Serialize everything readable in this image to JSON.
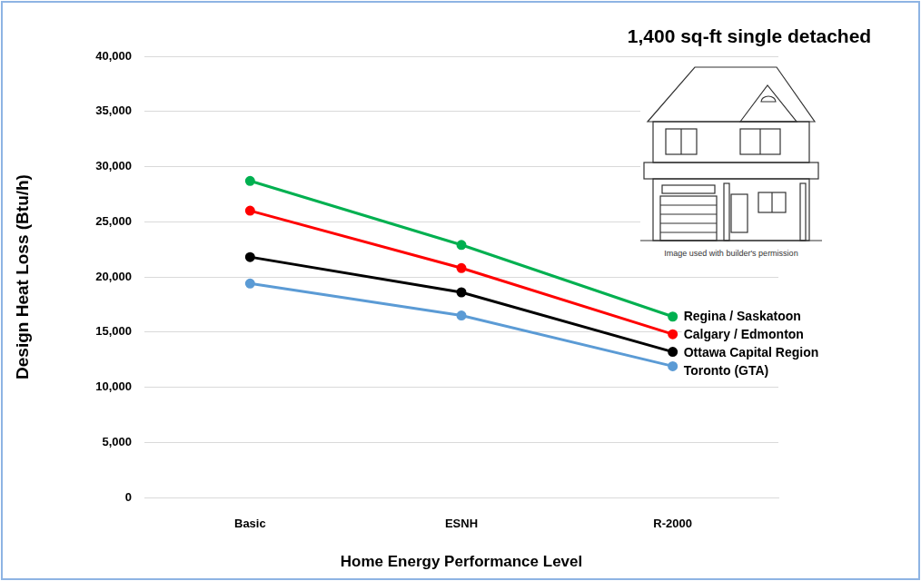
{
  "chart_data": {
    "type": "line",
    "title": "1,400 sq-ft single detached",
    "annotation": "Image used with builder's permission",
    "x_label": "Home Energy Performance Level",
    "y_label": "Design Heat Loss (Btu/h)",
    "categories": [
      "Basic",
      "ESNH",
      "R-2000"
    ],
    "series": [
      {
        "name": "Regina / Saskatoon",
        "color": "#00b050",
        "marker": "circle",
        "values": [
          28700,
          22900,
          16400
        ]
      },
      {
        "name": "Calgary / Edmonton",
        "color": "#ff0000",
        "marker": "circle",
        "values": [
          26000,
          20800,
          14800
        ]
      },
      {
        "name": "Ottawa Capital Region",
        "color": "#000000",
        "marker": "circle",
        "values": [
          21800,
          18600,
          13200
        ]
      },
      {
        "name": "Toronto (GTA)",
        "color": "#5b9bd5",
        "marker": "circle",
        "values": [
          19400,
          16500,
          11900
        ]
      }
    ],
    "ylim": [
      0,
      40000
    ],
    "yticks": [
      0,
      {
        "value": 5000,
        "label": "5,000"
      },
      {
        "value": 10000,
        "label": "10,000"
      },
      {
        "value": 15000,
        "label": "15,000"
      },
      {
        "value": 20000,
        "label": "20,000"
      },
      {
        "value": 25000,
        "label": "25,000"
      },
      {
        "value": 30000,
        "label": "30,000"
      },
      {
        "value": 35000,
        "label": "35,000"
      },
      {
        "value": 40000,
        "label": "40,000"
      }
    ],
    "grid": true
  }
}
